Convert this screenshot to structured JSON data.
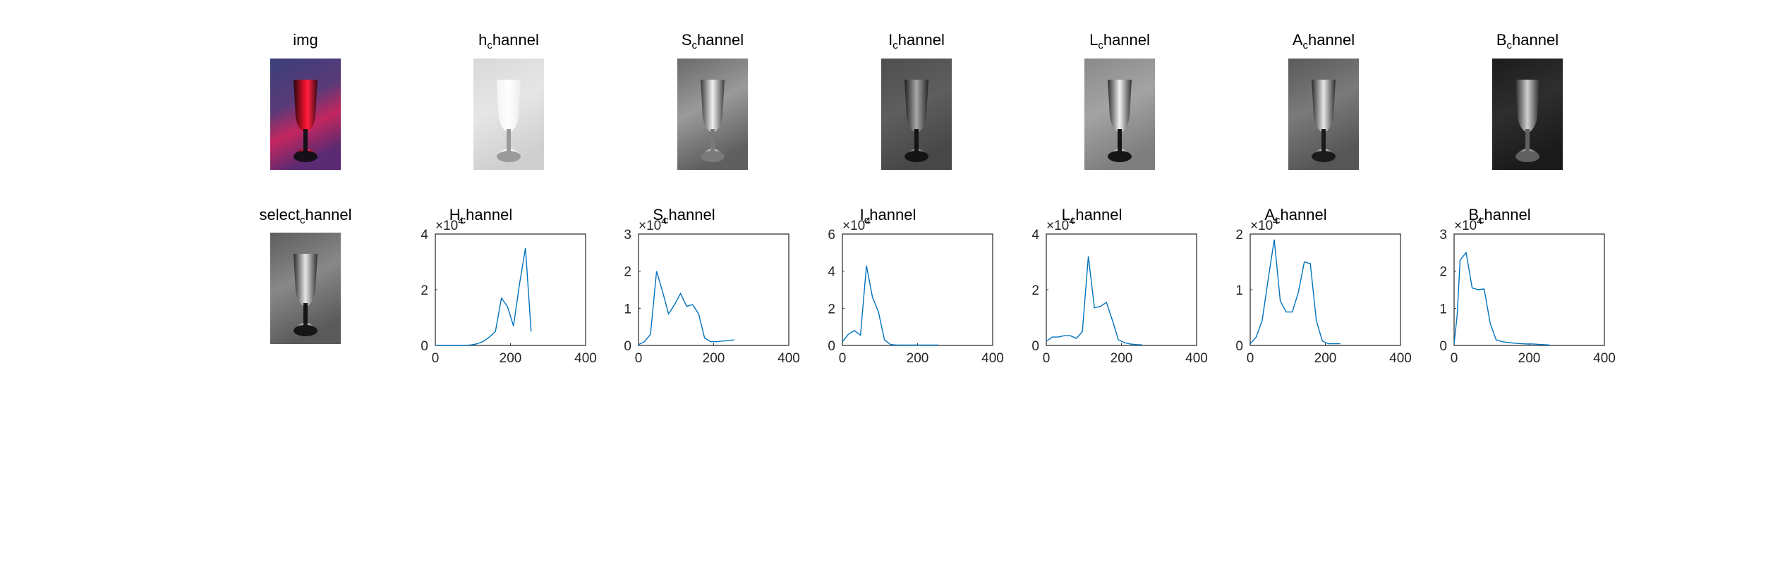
{
  "images": [
    {
      "id": "img",
      "title": "img",
      "sub": "",
      "rest": "",
      "kind": "color"
    },
    {
      "id": "h",
      "title": "h",
      "sub": "c",
      "rest": "hannel",
      "kind": "hue"
    },
    {
      "id": "s",
      "title": "S",
      "sub": "c",
      "rest": "hannel",
      "kind": "sat"
    },
    {
      "id": "i",
      "title": "I",
      "sub": "c",
      "rest": "hannel",
      "kind": "int"
    },
    {
      "id": "l",
      "title": "L",
      "sub": "c",
      "rest": "hannel",
      "kind": "light"
    },
    {
      "id": "a",
      "title": "A",
      "sub": "c",
      "rest": "hannel",
      "kind": "achan"
    },
    {
      "id": "b",
      "title": "B",
      "sub": "c",
      "rest": "hannel",
      "kind": "bchan"
    },
    {
      "id": "select",
      "title": "select",
      "sub": "c",
      "rest": "hannel",
      "kind": "select"
    }
  ],
  "colors": {
    "line": "#0072BD",
    "axis": "#262626",
    "tick_text": "#262626"
  },
  "chart_data": [
    {
      "type": "line",
      "title": "H",
      "title_sub": "c",
      "title_rest": "hannel",
      "exponent": "×10",
      "exponent_power": "4",
      "xlim": [
        0,
        400
      ],
      "ylim": [
        0,
        4
      ],
      "xticks": [
        "0",
        "200",
        "400"
      ],
      "yticks": [
        "0",
        "2",
        "4"
      ],
      "x": [
        0,
        16,
        32,
        48,
        64,
        80,
        96,
        112,
        128,
        144,
        160,
        176,
        192,
        208,
        224,
        240,
        255
      ],
      "y": [
        0.0,
        0.0,
        0.0,
        0.0,
        0.0,
        0.0,
        0.02,
        0.06,
        0.15,
        0.3,
        0.5,
        1.7,
        1.4,
        0.7,
        2.2,
        3.5,
        0.5
      ]
    },
    {
      "type": "line",
      "title": "S",
      "title_sub": "c",
      "title_rest": "hannel",
      "exponent": "×10",
      "exponent_power": "4",
      "xlim": [
        0,
        400
      ],
      "ylim": [
        0,
        3
      ],
      "xticks": [
        "0",
        "200",
        "400"
      ],
      "yticks": [
        "0",
        "1",
        "2",
        "3"
      ],
      "x": [
        0,
        16,
        32,
        48,
        64,
        80,
        96,
        112,
        128,
        144,
        160,
        176,
        192,
        208,
        224,
        240,
        255
      ],
      "y": [
        0.02,
        0.1,
        0.3,
        2.0,
        1.45,
        0.85,
        1.1,
        1.4,
        1.05,
        1.1,
        0.85,
        0.2,
        0.1,
        0.1,
        0.12,
        0.13,
        0.15
      ]
    },
    {
      "type": "line",
      "title": "I",
      "title_sub": "c",
      "title_rest": "hannel",
      "exponent": "×10",
      "exponent_power": "4",
      "xlim": [
        0,
        400
      ],
      "ylim": [
        0,
        6
      ],
      "xticks": [
        "0",
        "200",
        "400"
      ],
      "yticks": [
        "0",
        "2",
        "4",
        "6"
      ],
      "x": [
        0,
        16,
        32,
        48,
        64,
        80,
        96,
        112,
        128,
        144,
        160,
        176,
        192,
        208,
        224,
        240,
        255
      ],
      "y": [
        0.2,
        0.6,
        0.8,
        0.55,
        4.3,
        2.6,
        1.8,
        0.3,
        0.05,
        0.02,
        0.02,
        0.02,
        0.02,
        0.02,
        0.02,
        0.02,
        0.02
      ]
    },
    {
      "type": "line",
      "title": "L",
      "title_sub": "c",
      "title_rest": "hannel",
      "exponent": "×10",
      "exponent_power": "4",
      "xlim": [
        0,
        400
      ],
      "ylim": [
        0,
        4
      ],
      "xticks": [
        "0",
        "200",
        "400"
      ],
      "yticks": [
        "0",
        "2",
        "4"
      ],
      "x": [
        0,
        16,
        32,
        48,
        64,
        80,
        96,
        112,
        128,
        144,
        160,
        176,
        192,
        208,
        224,
        240,
        255
      ],
      "y": [
        0.15,
        0.3,
        0.3,
        0.35,
        0.35,
        0.25,
        0.5,
        3.2,
        1.35,
        1.4,
        1.55,
        0.9,
        0.2,
        0.1,
        0.05,
        0.03,
        0.02
      ]
    },
    {
      "type": "line",
      "title": "A",
      "title_sub": "c",
      "title_rest": "hannel",
      "exponent": "×10",
      "exponent_power": "4",
      "xlim": [
        0,
        400
      ],
      "ylim": [
        0,
        2
      ],
      "xticks": [
        "0",
        "200",
        "400"
      ],
      "yticks": [
        "0",
        "1",
        "2"
      ],
      "x": [
        0,
        16,
        32,
        48,
        64,
        80,
        96,
        112,
        128,
        144,
        160,
        176,
        192,
        208,
        224,
        240
      ],
      "y": [
        0.03,
        0.15,
        0.45,
        1.2,
        1.9,
        0.8,
        0.6,
        0.6,
        0.95,
        1.5,
        1.47,
        0.45,
        0.08,
        0.03,
        0.03,
        0.03
      ]
    },
    {
      "type": "line",
      "title": "B",
      "title_sub": "c",
      "title_rest": "hannel",
      "exponent": "×10",
      "exponent_power": "4",
      "xlim": [
        0,
        400
      ],
      "ylim": [
        0,
        3
      ],
      "xticks": [
        "0",
        "200",
        "400"
      ],
      "yticks": [
        "0",
        "1",
        "2",
        "3"
      ],
      "x": [
        0,
        8,
        16,
        32,
        48,
        64,
        80,
        96,
        112,
        128,
        144,
        160,
        176,
        192,
        208,
        224,
        240,
        255
      ],
      "y": [
        0.05,
        0.8,
        2.3,
        2.5,
        1.55,
        1.5,
        1.52,
        0.6,
        0.15,
        0.1,
        0.08,
        0.06,
        0.05,
        0.04,
        0.04,
        0.03,
        0.02,
        0.01
      ]
    }
  ]
}
